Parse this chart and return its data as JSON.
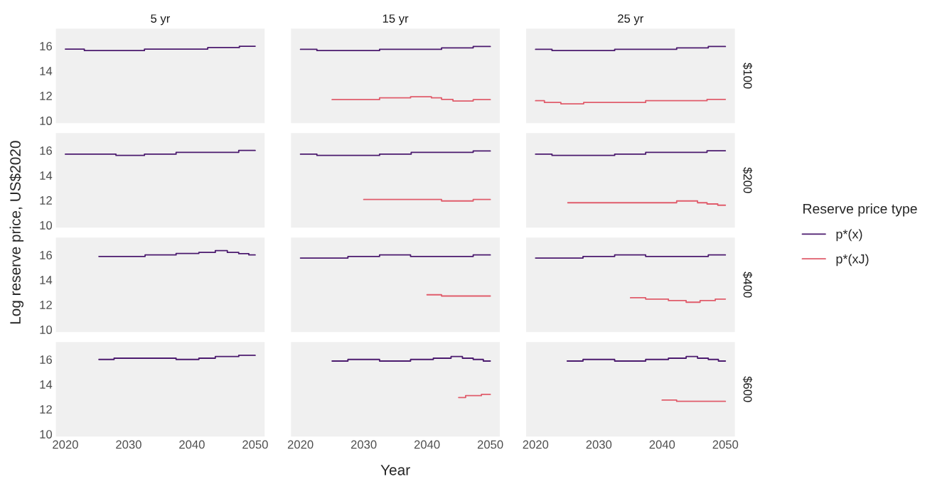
{
  "chart_data": [
    {
      "type": "step",
      "title": "5 yr",
      "ylabel": "Log reserve price, US$2020",
      "xlim": [
        2018.5,
        2051.5
      ],
      "xticks": [
        2020,
        2030,
        2040,
        2050
      ],
      "ylim": [
        9.8,
        17.4
      ],
      "yticks": [
        10,
        12,
        14,
        16
      ],
      "tick_labels": "y",
      "grid": false,
      "series": [
        {
          "color": "#4b1a6e",
          "x": [
            2020,
            2023,
            2032.5,
            2042.5,
            2047.5,
            2050
          ],
          "values": [
            15.75,
            15.63,
            15.75,
            15.87,
            15.98,
            15.98
          ]
        }
      ]
    },
    {
      "type": "step",
      "title": "15 yr",
      "xlim": [
        2018.5,
        2051.5
      ],
      "xticks": [
        2020,
        2030,
        2040,
        2050
      ],
      "ylim": [
        9.8,
        17.4
      ],
      "yticks": [
        10,
        12,
        14,
        16
      ],
      "tick_labels": false,
      "grid": false,
      "series": [
        {
          "color": "#4b1a6e",
          "x": [
            2020,
            2022.6,
            2032.5,
            2042.3,
            2047.3,
            2050
          ],
          "values": [
            15.73,
            15.63,
            15.73,
            15.85,
            15.96,
            15.96
          ]
        },
        {
          "color": "#e05c6b",
          "x": [
            2025,
            2032.5,
            2037.4,
            2040.7,
            2042.3,
            2044.1,
            2047.3,
            2050
          ],
          "values": [
            11.69,
            11.83,
            11.92,
            11.83,
            11.71,
            11.58,
            11.69,
            11.69
          ]
        }
      ]
    },
    {
      "type": "step",
      "title": "25 yr",
      "annotations": [
        "$100"
      ],
      "xlim": [
        2018.5,
        2051.5
      ],
      "xticks": [
        2020,
        2030,
        2040,
        2050
      ],
      "ylim": [
        9.8,
        17.4
      ],
      "yticks": [
        10,
        12,
        14,
        16
      ],
      "tick_labels": false,
      "grid": false,
      "series": [
        {
          "color": "#4b1a6e",
          "x": [
            2020,
            2022.6,
            2032.5,
            2042.3,
            2047.3,
            2050
          ],
          "values": [
            15.73,
            15.63,
            15.73,
            15.85,
            15.96,
            15.96
          ]
        },
        {
          "color": "#e05c6b",
          "x": [
            2020,
            2021.4,
            2024,
            2027.6,
            2037.4,
            2047.1,
            2050
          ],
          "values": [
            11.6,
            11.46,
            11.35,
            11.46,
            11.6,
            11.71,
            11.71
          ]
        }
      ]
    },
    {
      "type": "step",
      "xlim": [
        2018.5,
        2051.5
      ],
      "xticks": [
        2020,
        2030,
        2040,
        2050
      ],
      "ylim": [
        9.8,
        17.4
      ],
      "yticks": [
        10,
        12,
        14,
        16
      ],
      "tick_labels": "y",
      "grid": false,
      "series": [
        {
          "color": "#4b1a6e",
          "x": [
            2020,
            2028,
            2032.5,
            2037.5,
            2047.4,
            2050
          ],
          "values": [
            15.7,
            15.6,
            15.7,
            15.85,
            16.0,
            16.0
          ]
        }
      ]
    },
    {
      "type": "step",
      "xlim": [
        2018.5,
        2051.5
      ],
      "xticks": [
        2020,
        2030,
        2040,
        2050
      ],
      "ylim": [
        9.8,
        17.4
      ],
      "yticks": [
        10,
        12,
        14,
        16
      ],
      "tick_labels": false,
      "grid": false,
      "series": [
        {
          "color": "#4b1a6e",
          "x": [
            2020,
            2022.6,
            2032.5,
            2037.5,
            2047.3,
            2050
          ],
          "values": [
            15.7,
            15.6,
            15.7,
            15.85,
            15.96,
            15.96
          ]
        },
        {
          "color": "#e05c6b",
          "x": [
            2030,
            2042.3,
            2047.3,
            2050
          ],
          "values": [
            12.06,
            11.94,
            12.06,
            12.06
          ]
        }
      ]
    },
    {
      "type": "step",
      "annotations": [
        "$200"
      ],
      "legend_title": "Reserve price type",
      "legend": "right",
      "xlim": [
        2018.5,
        2051.5
      ],
      "xticks": [
        2020,
        2030,
        2040,
        2050
      ],
      "ylim": [
        9.8,
        17.4
      ],
      "yticks": [
        10,
        12,
        14,
        16
      ],
      "tick_labels": false,
      "grid": false,
      "series": [
        {
          "name": "p*(x)",
          "color": "#4b1a6e",
          "x": [
            2020,
            2022.6,
            2032.5,
            2037.4,
            2047.1,
            2050
          ],
          "values": [
            15.7,
            15.6,
            15.7,
            15.85,
            15.98,
            15.98
          ]
        },
        {
          "name": "p*(xJ)",
          "color": "#e05c6b",
          "x": [
            2025.1,
            2042.3,
            2045.6,
            2047.1,
            2048.8,
            2050
          ],
          "values": [
            11.8,
            11.94,
            11.8,
            11.7,
            11.6,
            11.6
          ]
        }
      ]
    },
    {
      "type": "step",
      "xlim": [
        2018.5,
        2051.5
      ],
      "xticks": [
        2020,
        2030,
        2040,
        2050
      ],
      "ylim": [
        9.8,
        17.4
      ],
      "yticks": [
        10,
        12,
        14,
        16
      ],
      "tick_labels": "y",
      "grid": false,
      "series": [
        {
          "color": "#4b1a6e",
          "x": [
            2025.3,
            2032.6,
            2037.5,
            2041.1,
            2043.7,
            2045.6,
            2047.4,
            2049,
            2050
          ],
          "values": [
            15.88,
            16.0,
            16.12,
            16.2,
            16.35,
            16.2,
            16.1,
            16.0,
            16.0
          ]
        }
      ]
    },
    {
      "type": "step",
      "xlim": [
        2018.5,
        2051.5
      ],
      "xticks": [
        2020,
        2030,
        2040,
        2050
      ],
      "ylim": [
        9.8,
        17.4
      ],
      "yticks": [
        10,
        12,
        14,
        16
      ],
      "tick_labels": false,
      "grid": false,
      "series": [
        {
          "color": "#4b1a6e",
          "x": [
            2020,
            2027.5,
            2032.5,
            2037.4,
            2047.3,
            2050
          ],
          "values": [
            15.75,
            15.88,
            16.0,
            15.88,
            16.0,
            16.0
          ]
        },
        {
          "color": "#e05c6b",
          "x": [
            2040,
            2042.3,
            2050
          ],
          "values": [
            12.8,
            12.7,
            12.7
          ]
        }
      ]
    },
    {
      "type": "step",
      "annotations": [
        "$400"
      ],
      "xlim": [
        2018.5,
        2051.5
      ],
      "xticks": [
        2020,
        2030,
        2040,
        2050
      ],
      "ylim": [
        9.8,
        17.4
      ],
      "yticks": [
        10,
        12,
        14,
        16
      ],
      "tick_labels": false,
      "grid": false,
      "series": [
        {
          "color": "#4b1a6e",
          "x": [
            2020,
            2027.5,
            2032.5,
            2037.4,
            2047.3,
            2050
          ],
          "values": [
            15.75,
            15.88,
            16.0,
            15.88,
            16.0,
            16.0
          ]
        },
        {
          "color": "#e05c6b",
          "x": [
            2035,
            2037.4,
            2041,
            2043.8,
            2046,
            2048.4,
            2050
          ],
          "values": [
            12.56,
            12.45,
            12.33,
            12.2,
            12.33,
            12.45,
            12.45
          ]
        }
      ]
    },
    {
      "type": "step",
      "xlim": [
        2018.5,
        2051.5
      ],
      "xticks": [
        2020,
        2030,
        2040,
        2050
      ],
      "ylim": [
        9.8,
        17.4
      ],
      "yticks": [
        10,
        12,
        14,
        16
      ],
      "grid": false,
      "series": [
        {
          "color": "#4b1a6e",
          "x": [
            2025.3,
            2027.7,
            2037.5,
            2041.1,
            2043.7,
            2047.4,
            2050
          ],
          "values": [
            16.0,
            16.1,
            16.0,
            16.1,
            16.23,
            16.33,
            16.33
          ]
        }
      ]
    },
    {
      "type": "step",
      "xlabel": "Year",
      "xlim": [
        2018.5,
        2051.5
      ],
      "xticks": [
        2020,
        2030,
        2040,
        2050
      ],
      "ylim": [
        9.8,
        17.4
      ],
      "yticks": [
        10,
        12,
        14,
        16
      ],
      "tick_labels": "x",
      "grid": false,
      "series": [
        {
          "color": "#4b1a6e",
          "x": [
            2025,
            2027.5,
            2032.5,
            2037.4,
            2041,
            2043.8,
            2045.6,
            2047.3,
            2048.9,
            2050
          ],
          "values": [
            15.87,
            16.0,
            15.87,
            16.0,
            16.1,
            16.23,
            16.1,
            16.0,
            15.87,
            15.87
          ]
        },
        {
          "color": "#e05c6b",
          "x": [
            2045,
            2046.1,
            2048.6,
            2050
          ],
          "values": [
            12.94,
            13.09,
            13.19,
            13.19
          ]
        }
      ]
    },
    {
      "type": "step",
      "annotations": [
        "$600"
      ],
      "xlim": [
        2018.5,
        2051.5
      ],
      "xticks": [
        2020,
        2030,
        2040,
        2050
      ],
      "ylim": [
        9.8,
        17.4
      ],
      "yticks": [
        10,
        12,
        14,
        16
      ],
      "tick_labels": "x",
      "grid": false,
      "series": [
        {
          "color": "#4b1a6e",
          "x": [
            2025,
            2027.5,
            2032.5,
            2037.4,
            2041,
            2043.8,
            2045.6,
            2047.3,
            2048.9,
            2050
          ],
          "values": [
            15.87,
            16.0,
            15.87,
            16.0,
            16.1,
            16.23,
            16.1,
            16.0,
            15.87,
            15.87
          ]
        },
        {
          "color": "#e05c6b",
          "x": [
            2040,
            2042.3,
            2050
          ],
          "values": [
            12.73,
            12.63,
            12.63
          ]
        }
      ]
    }
  ]
}
